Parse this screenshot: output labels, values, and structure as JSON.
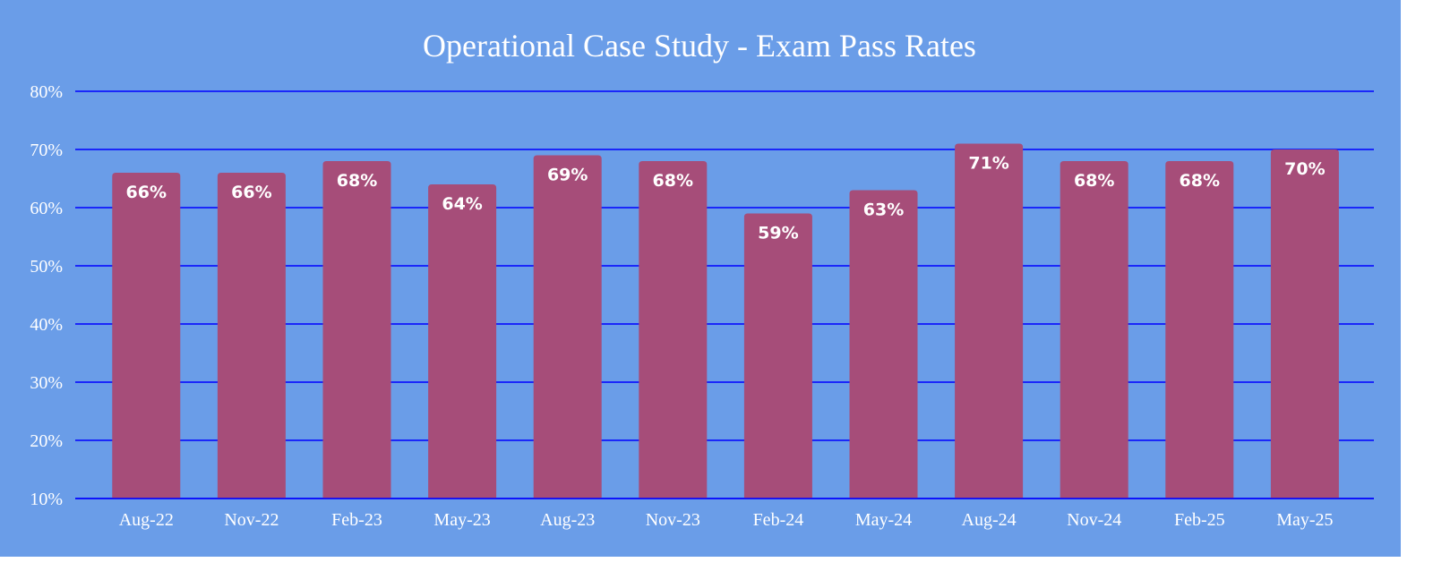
{
  "chart_data": {
    "type": "bar",
    "title": "Operational Case Study - Exam Pass Rates",
    "xlabel": "",
    "ylabel": "",
    "categories": [
      "Aug-22",
      "Nov-22",
      "Feb-23",
      "May-23",
      "Aug-23",
      "Nov-23",
      "Feb-24",
      "May-24",
      "Aug-24",
      "Nov-24",
      "Feb-25",
      "May-25"
    ],
    "values": [
      66,
      66,
      68,
      64,
      69,
      68,
      59,
      63,
      71,
      68,
      68,
      70
    ],
    "data_labels": [
      "66%",
      "66%",
      "68%",
      "64%",
      "69%",
      "68%",
      "59%",
      "63%",
      "71%",
      "68%",
      "68%",
      "70%"
    ],
    "ylim": [
      10,
      80
    ],
    "yticks": [
      10,
      20,
      30,
      40,
      50,
      60,
      70,
      80
    ],
    "ytick_labels": [
      "10%",
      "20%",
      "30%",
      "40%",
      "50%",
      "60%",
      "70%",
      "80%"
    ],
    "grid": true,
    "legend": "none",
    "colors": {
      "background": "#6a9de8",
      "bar": "#a64d79",
      "grid": "#0000ff",
      "text": "#ffffff"
    }
  }
}
